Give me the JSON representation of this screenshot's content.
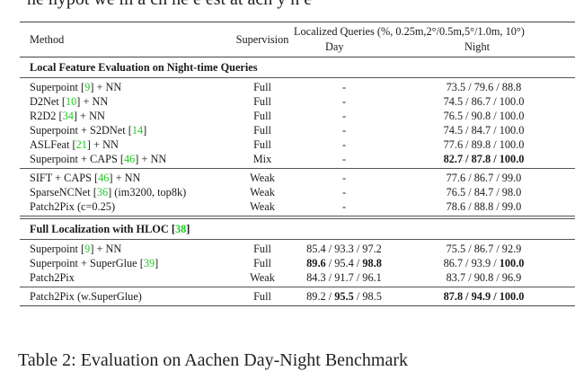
{
  "top_fragment": "ne hypot we m a ch he e est at ach y n e",
  "table": {
    "header": {
      "method": "Method",
      "supervision": "Supervision",
      "localized": "Localized Queries (%, 0.25m,2°/0.5m,5°/1.0m, 10°)",
      "day": "Day",
      "night": "Night"
    },
    "sections": [
      {
        "title": "Local Feature Evaluation on Night-time Queries",
        "title_cite": "",
        "blocks": [
          [
            {
              "method": "Superpoint ",
              "cite": "9",
              "method_suffix": " + NN",
              "supervision": "Full",
              "day": "-",
              "night": "73.5 / 79.6 / 88.8",
              "night_bold": [
                false,
                false,
                false
              ]
            },
            {
              "method": "D2Net ",
              "cite": "10",
              "method_suffix": " + NN",
              "supervision": "Full",
              "day": "-",
              "night": "74.5 / 86.7 / 100.0",
              "night_bold": [
                false,
                false,
                false
              ]
            },
            {
              "method": "R2D2 ",
              "cite": "34",
              "method_suffix": " + NN",
              "supervision": "Full",
              "day": "-",
              "night": "76.5 / 90.8 / 100.0",
              "night_bold": [
                false,
                false,
                false
              ]
            },
            {
              "method": "Superpoint + S2DNet ",
              "cite": "14",
              "method_suffix": "",
              "supervision": "Full",
              "day": "-",
              "night": "74.5 / 84.7 / 100.0",
              "night_bold": [
                false,
                false,
                false
              ]
            },
            {
              "method": "ASLFeat ",
              "cite": "21",
              "method_suffix": " + NN",
              "supervision": "Full",
              "day": "-",
              "night": "77.6 / 89.8 / 100.0",
              "night_bold": [
                false,
                false,
                false
              ]
            },
            {
              "method": "Superpoint + CAPS ",
              "cite": "46",
              "method_suffix": " + NN",
              "supervision": "Mix",
              "day": "-",
              "night": "82.7 / 87.8 / 100.0",
              "night_bold": [
                true,
                true,
                true
              ]
            }
          ],
          [
            {
              "method": "SIFT + CAPS ",
              "cite": "46",
              "method_suffix": " + NN",
              "supervision": "Weak",
              "day": "-",
              "night": "77.6 / 86.7 / 99.0",
              "night_bold": [
                false,
                false,
                false
              ]
            },
            {
              "method": "SparseNCNet ",
              "cite": "36",
              "method_suffix": " (im3200, top8k)",
              "supervision": "Weak",
              "day": "-",
              "night": "76.5 / 84.7 / 98.0",
              "night_bold": [
                false,
                false,
                false
              ]
            },
            {
              "method": "Patch2Pix (c=0.25)",
              "cite": "",
              "method_suffix": "",
              "supervision": "Weak",
              "day": "-",
              "night": "78.6 / 88.8 / 99.0",
              "night_bold": [
                false,
                false,
                false
              ]
            }
          ]
        ]
      },
      {
        "title": "Full Localization with HLOC ",
        "title_cite": "38",
        "blocks": [
          [
            {
              "method": "Superpoint ",
              "cite": "9",
              "method_suffix": " + NN",
              "supervision": "Full",
              "day": "85.4 / 93.3 / 97.2",
              "night": "75.5 / 86.7 / 92.9"
            },
            {
              "method": "Superpoint + SuperGlue ",
              "cite": "39",
              "method_suffix": "",
              "supervision": "Full",
              "day": "89.6 / 95.4 / 98.8",
              "night": "86.7 / 93.9 / 100.0"
            },
            {
              "method": "Patch2Pix",
              "cite": "",
              "method_suffix": "",
              "supervision": "Weak",
              "day": "84.3 / 91.7 / 96.1",
              "night": "83.7 / 90.8 / 96.9"
            }
          ],
          [
            {
              "method": "Patch2Pix (w.SuperGlue)",
              "cite": "",
              "method_suffix": "",
              "supervision": "Full",
              "day": "89.2 / 95.5 / 98.5",
              "night": "87.8 / 94.9 / 100.0"
            }
          ]
        ]
      }
    ]
  },
  "caption_fragment": "Table 2: Evaluation on Aachen Day-Night Benchmark"
}
